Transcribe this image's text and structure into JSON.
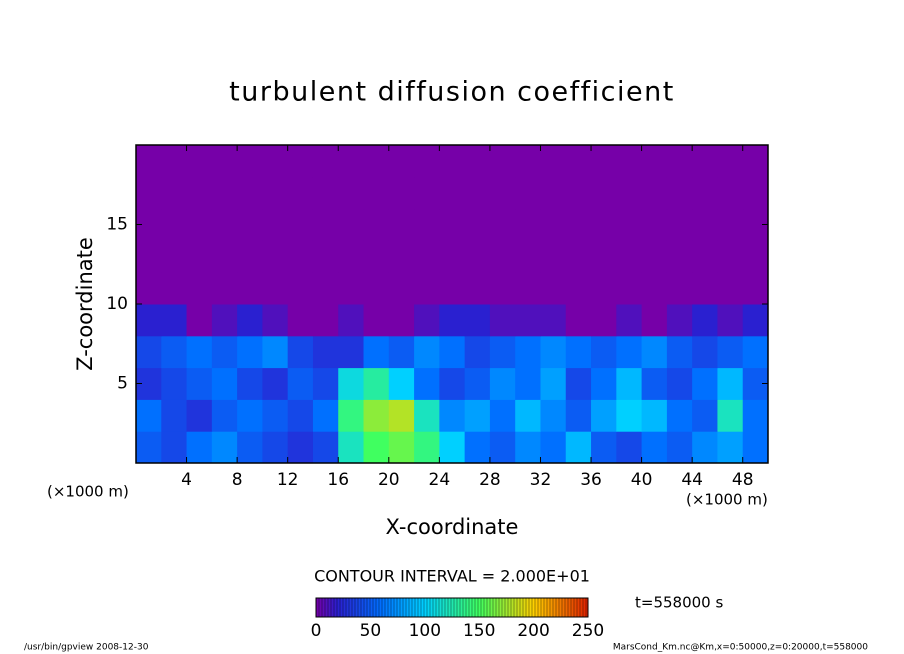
{
  "chart_data": {
    "type": "heatmap",
    "title": "turbulent diffusion coefficient",
    "x_label": "X-coordinate",
    "y_label": "Z-coordinate",
    "x_unit_label": "(×1000 m)",
    "contour_note": "CONTOUR INTERVAL = 2.000E+01",
    "time_label": "t=558000 s",
    "footer_left": "/usr/bin/gpview   2008-12-30",
    "footer_right": "MarsCond_Km.nc@Km,x=0:50000,z=0:20000,t=558000",
    "xlim": [
      0,
      50
    ],
    "ylim": [
      0,
      20
    ],
    "xticks": [
      4,
      8,
      12,
      16,
      20,
      24,
      28,
      32,
      36,
      40,
      44,
      48
    ],
    "yticks": [
      5,
      10,
      15
    ],
    "x_edges": [
      0,
      2,
      4,
      6,
      8,
      10,
      12,
      14,
      16,
      18,
      20,
      22,
      24,
      26,
      28,
      30,
      32,
      34,
      36,
      38,
      40,
      42,
      44,
      46,
      48,
      50
    ],
    "y_edges": [
      0,
      2,
      4,
      6,
      8,
      10,
      12,
      14,
      16,
      18,
      20
    ],
    "values": [
      [
        50,
        40,
        60,
        70,
        50,
        40,
        30,
        40,
        120,
        150,
        160,
        140,
        100,
        60,
        50,
        70,
        60,
        90,
        50,
        40,
        60,
        50,
        70,
        80,
        60
      ],
      [
        60,
        40,
        30,
        50,
        60,
        50,
        40,
        60,
        140,
        170,
        180,
        120,
        70,
        80,
        60,
        90,
        70,
        50,
        80,
        100,
        90,
        60,
        50,
        120,
        60
      ],
      [
        30,
        40,
        50,
        60,
        40,
        30,
        50,
        40,
        110,
        130,
        100,
        60,
        40,
        50,
        70,
        60,
        80,
        40,
        60,
        90,
        50,
        40,
        60,
        90,
        50
      ],
      [
        40,
        50,
        60,
        50,
        60,
        70,
        40,
        30,
        30,
        60,
        50,
        70,
        60,
        40,
        50,
        60,
        70,
        60,
        50,
        60,
        70,
        50,
        40,
        50,
        60
      ],
      [
        20,
        20,
        0,
        10,
        20,
        10,
        0,
        0,
        10,
        0,
        0,
        10,
        20,
        20,
        10,
        10,
        10,
        0,
        0,
        10,
        0,
        10,
        20,
        10,
        20
      ],
      [
        0,
        0,
        0,
        0,
        0,
        0,
        0,
        0,
        0,
        0,
        0,
        0,
        0,
        0,
        0,
        0,
        0,
        0,
        0,
        0,
        0,
        0,
        0,
        0,
        0
      ],
      [
        0,
        0,
        0,
        0,
        0,
        0,
        0,
        0,
        0,
        0,
        0,
        0,
        0,
        0,
        0,
        0,
        0,
        0,
        0,
        0,
        0,
        0,
        0,
        0,
        0
      ],
      [
        0,
        0,
        0,
        0,
        0,
        0,
        0,
        0,
        0,
        0,
        0,
        0,
        0,
        0,
        0,
        0,
        0,
        0,
        0,
        0,
        0,
        0,
        0,
        0,
        0
      ],
      [
        0,
        0,
        0,
        0,
        0,
        0,
        0,
        0,
        0,
        0,
        0,
        0,
        0,
        0,
        0,
        0,
        0,
        0,
        0,
        0,
        0,
        0,
        0,
        0,
        0
      ],
      [
        0,
        0,
        0,
        0,
        0,
        0,
        0,
        0,
        0,
        0,
        0,
        0,
        0,
        0,
        0,
        0,
        0,
        0,
        0,
        0,
        0,
        0,
        0,
        0,
        0
      ]
    ],
    "clim": [
      0,
      250
    ],
    "colorbar_ticks": [
      0,
      50,
      100,
      150,
      200,
      250
    ],
    "colorscale": [
      [
        0,
        "#7600a8"
      ],
      [
        20,
        "#2a20d0"
      ],
      [
        60,
        "#0070ff"
      ],
      [
        100,
        "#00d0ff"
      ],
      [
        150,
        "#40ff60"
      ],
      [
        200,
        "#ffd000"
      ],
      [
        250,
        "#e02000"
      ]
    ]
  }
}
